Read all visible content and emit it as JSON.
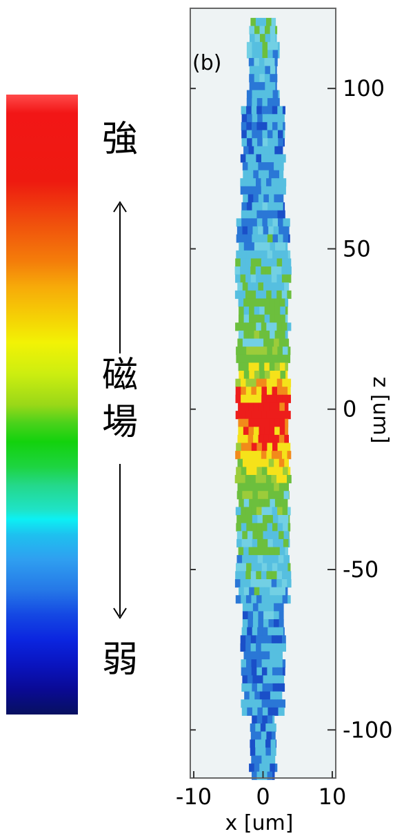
{
  "legend": {
    "top_label": "強",
    "middle_label_1": "磁",
    "middle_label_2": "場",
    "bottom_label": "弱"
  },
  "chart_data": {
    "type": "heatmap",
    "panel_label": "(b)",
    "xlabel": "x [um]",
    "ylabel": "z [um]",
    "xlim": [
      -10.5,
      10.5
    ],
    "ylim": [
      -115,
      125
    ],
    "xticks": [
      -10,
      0,
      10
    ],
    "yticks": [
      100,
      50,
      0,
      -50,
      -100
    ],
    "xtick_labels": [
      "-10",
      "0",
      "10"
    ],
    "ytick_labels": [
      "100",
      "50",
      "0",
      "-50",
      "-100"
    ],
    "colormap": [
      "#071060",
      "#0b25df",
      "#2f9ff0",
      "#0cf0f4",
      "#13d20d",
      "#f2f205",
      "#f47e0a",
      "#ee1a10"
    ],
    "colors": {
      "plot_background": "#eef3f4",
      "main_field": "#56bfe0",
      "medium_field": "#6cbf3d",
      "strong_field": "#ed1d1b",
      "high_field": "#f5e21a"
    },
    "profile": [
      {
        "z": 122,
        "field_level": 0.45
      },
      {
        "z": 100,
        "field_level": 0.3
      },
      {
        "z": 60,
        "field_level": 0.32
      },
      {
        "z": 35,
        "field_level": 0.45
      },
      {
        "z": 20,
        "field_level": 0.55
      },
      {
        "z": 10,
        "field_level": 0.7
      },
      {
        "z": 0,
        "field_level": 0.95
      },
      {
        "z": -10,
        "field_level": 0.8
      },
      {
        "z": -25,
        "field_level": 0.55
      },
      {
        "z": -45,
        "field_level": 0.42
      },
      {
        "z": -70,
        "field_level": 0.3
      },
      {
        "z": -100,
        "field_level": 0.3
      },
      {
        "z": -112,
        "field_level": 0.3
      }
    ]
  }
}
